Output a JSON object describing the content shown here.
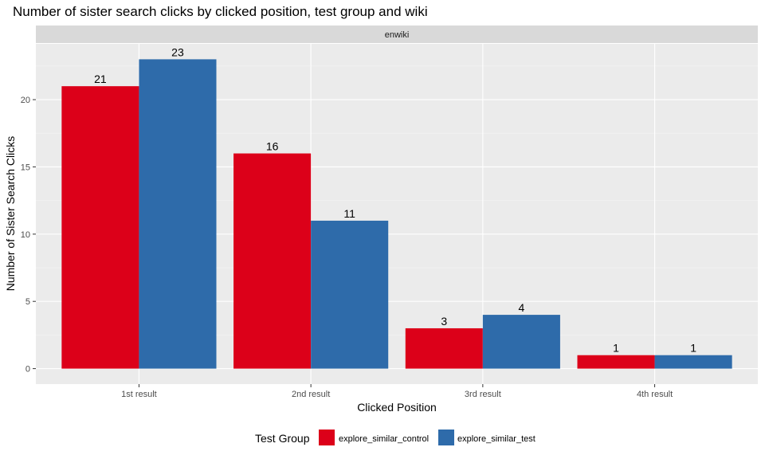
{
  "chart_data": {
    "type": "bar",
    "title": "Number of sister search clicks by clicked position, test group and wiki",
    "facet": "enwiki",
    "xlabel": "Clicked Position",
    "ylabel": "Number of Sister Search Clicks",
    "categories": [
      "1st result",
      "2nd result",
      "3rd result",
      "4th result"
    ],
    "series": [
      {
        "name": "explore_similar_control",
        "color": "#DC0019",
        "values": [
          21,
          16,
          3,
          1
        ]
      },
      {
        "name": "explore_similar_test",
        "color": "#2E6BAA",
        "values": [
          23,
          11,
          4,
          1
        ]
      }
    ],
    "ylim": [
      -1.15,
      24.15
    ],
    "yticks": [
      0,
      5,
      10,
      15,
      20
    ],
    "grid": true,
    "legend": {
      "title": "Test Group",
      "position": "bottom"
    }
  }
}
